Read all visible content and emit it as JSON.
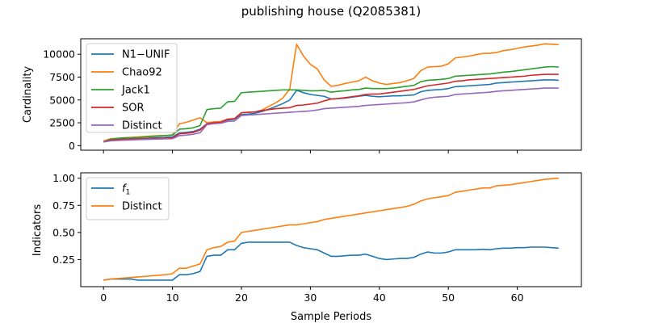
{
  "chart_data": [
    {
      "type": "line",
      "title": "publishing house (Q2085381)",
      "xlabel": "",
      "ylabel": "Cardinality",
      "xlim": [
        -3.3,
        69.3
      ],
      "ylim": [
        -500,
        11700
      ],
      "xticks": [
        0,
        10,
        20,
        30,
        40,
        50,
        60
      ],
      "xtick_labels_shown": false,
      "yticks": [
        0,
        2500,
        5000,
        7500,
        10000
      ],
      "ytick_labels": [
        "0",
        "2500",
        "5000",
        "7500",
        "10000"
      ],
      "legend_position": "upper-left",
      "series": [
        {
          "name": "N1−UNIF",
          "color": "#1f77b4",
          "x": [
            0,
            1,
            2,
            3,
            4,
            5,
            6,
            7,
            8,
            9,
            10,
            11,
            12,
            13,
            14,
            15,
            16,
            17,
            18,
            19,
            20,
            21,
            22,
            23,
            24,
            25,
            26,
            27,
            28,
            29,
            30,
            31,
            32,
            33,
            34,
            35,
            36,
            37,
            38,
            39,
            40,
            41,
            42,
            43,
            44,
            45,
            46,
            47,
            48,
            49,
            50,
            51,
            52,
            53,
            54,
            55,
            56,
            57,
            58,
            59,
            60,
            61,
            62,
            63,
            64,
            65,
            66
          ],
          "values": [
            420,
            600,
            680,
            720,
            760,
            780,
            800,
            840,
            880,
            900,
            950,
            1400,
            1450,
            1550,
            1800,
            2400,
            2500,
            2550,
            2800,
            2900,
            3400,
            3450,
            3550,
            3750,
            4000,
            4300,
            4600,
            5000,
            6050,
            5800,
            5600,
            5500,
            5400,
            5100,
            5150,
            5200,
            5300,
            5400,
            5500,
            5400,
            5350,
            5400,
            5450,
            5450,
            5500,
            5550,
            5900,
            6050,
            6100,
            6150,
            6250,
            6450,
            6500,
            6550,
            6600,
            6650,
            6700,
            6850,
            6900,
            6950,
            7000,
            7050,
            7100,
            7150,
            7200,
            7200,
            7150
          ]
        },
        {
          "name": "Chao92",
          "color": "#ff7f0e",
          "x": [
            0,
            1,
            2,
            3,
            4,
            5,
            6,
            7,
            8,
            9,
            10,
            11,
            12,
            13,
            14,
            15,
            16,
            17,
            18,
            19,
            20,
            21,
            22,
            23,
            24,
            25,
            26,
            27,
            28,
            29,
            30,
            31,
            32,
            33,
            34,
            35,
            36,
            37,
            38,
            39,
            40,
            41,
            42,
            43,
            44,
            45,
            46,
            47,
            48,
            49,
            50,
            51,
            52,
            53,
            54,
            55,
            56,
            57,
            58,
            59,
            60,
            61,
            62,
            63,
            64,
            65,
            66
          ],
          "values": [
            500,
            750,
            800,
            850,
            900,
            950,
            1000,
            1050,
            1100,
            1100,
            1200,
            2400,
            2550,
            2800,
            3050,
            2500,
            2600,
            2650,
            2900,
            2950,
            3600,
            3650,
            3700,
            3900,
            4300,
            4700,
            5200,
            6200,
            11100,
            9800,
            8900,
            8400,
            7200,
            6500,
            6600,
            6800,
            6950,
            7100,
            7500,
            7100,
            6850,
            6700,
            6800,
            6900,
            7100,
            7350,
            8200,
            8600,
            8650,
            8700,
            8950,
            9600,
            9700,
            9800,
            9950,
            10100,
            10100,
            10200,
            10400,
            10500,
            10650,
            10800,
            10900,
            11000,
            11150,
            11100,
            11050
          ]
        },
        {
          "name": "Jack1",
          "color": "#2ca02c",
          "x": [
            0,
            1,
            2,
            3,
            4,
            5,
            6,
            7,
            8,
            9,
            10,
            11,
            12,
            13,
            14,
            15,
            16,
            17,
            18,
            19,
            20,
            21,
            22,
            23,
            24,
            25,
            26,
            27,
            28,
            29,
            30,
            31,
            32,
            33,
            34,
            35,
            36,
            37,
            38,
            39,
            40,
            41,
            42,
            43,
            44,
            45,
            46,
            47,
            48,
            49,
            50,
            51,
            52,
            53,
            54,
            55,
            56,
            57,
            58,
            59,
            60,
            61,
            62,
            63,
            64,
            65,
            66
          ],
          "values": [
            420,
            700,
            800,
            850,
            870,
            900,
            950,
            1000,
            1050,
            1100,
            1150,
            1800,
            1850,
            1950,
            2200,
            3950,
            4050,
            4100,
            4800,
            4850,
            5800,
            5850,
            5900,
            5950,
            6000,
            6050,
            6100,
            6100,
            6100,
            6050,
            6000,
            6000,
            6050,
            5850,
            5950,
            6000,
            6100,
            6150,
            6300,
            6250,
            6250,
            6250,
            6300,
            6400,
            6500,
            6600,
            7000,
            7150,
            7200,
            7250,
            7350,
            7600,
            7650,
            7700,
            7750,
            7800,
            7850,
            7950,
            8050,
            8100,
            8200,
            8300,
            8400,
            8500,
            8600,
            8650,
            8600
          ]
        },
        {
          "name": "SOR",
          "color": "#d62728",
          "x": [
            0,
            1,
            2,
            3,
            4,
            5,
            6,
            7,
            8,
            9,
            10,
            11,
            12,
            13,
            14,
            15,
            16,
            17,
            18,
            19,
            20,
            21,
            22,
            23,
            24,
            25,
            26,
            27,
            28,
            29,
            30,
            31,
            32,
            33,
            34,
            35,
            36,
            37,
            38,
            39,
            40,
            41,
            42,
            43,
            44,
            45,
            46,
            47,
            48,
            49,
            50,
            51,
            52,
            53,
            54,
            55,
            56,
            57,
            58,
            59,
            60,
            61,
            62,
            63,
            64,
            65,
            66
          ],
          "values": [
            420,
            600,
            650,
            700,
            720,
            740,
            760,
            780,
            800,
            820,
            850,
            1300,
            1350,
            1450,
            1700,
            2400,
            2500,
            2550,
            2900,
            2950,
            3600,
            3650,
            3700,
            3850,
            3950,
            4050,
            4100,
            4150,
            4400,
            4450,
            4550,
            4650,
            4900,
            5100,
            5150,
            5250,
            5350,
            5450,
            5600,
            5650,
            5650,
            5750,
            5850,
            5950,
            6050,
            6150,
            6350,
            6550,
            6650,
            6750,
            6850,
            7050,
            7100,
            7200,
            7250,
            7300,
            7350,
            7400,
            7450,
            7500,
            7550,
            7600,
            7700,
            7750,
            7800,
            7800,
            7800
          ]
        },
        {
          "name": "Distinct",
          "color": "#9467bd",
          "x": [
            0,
            1,
            2,
            3,
            4,
            5,
            6,
            7,
            8,
            9,
            10,
            11,
            12,
            13,
            14,
            15,
            16,
            17,
            18,
            19,
            20,
            21,
            22,
            23,
            24,
            25,
            26,
            27,
            28,
            29,
            30,
            31,
            32,
            33,
            34,
            35,
            36,
            37,
            38,
            39,
            40,
            41,
            42,
            43,
            44,
            45,
            46,
            47,
            48,
            49,
            50,
            51,
            52,
            53,
            54,
            55,
            56,
            57,
            58,
            59,
            60,
            61,
            62,
            63,
            64,
            65,
            66
          ],
          "values": [
            400,
            520,
            560,
            600,
            620,
            650,
            680,
            700,
            720,
            740,
            760,
            1100,
            1150,
            1250,
            1400,
            2300,
            2400,
            2450,
            2650,
            2700,
            3300,
            3350,
            3400,
            3450,
            3500,
            3550,
            3600,
            3650,
            3700,
            3750,
            3800,
            3900,
            4050,
            4100,
            4150,
            4200,
            4250,
            4300,
            4400,
            4450,
            4500,
            4550,
            4600,
            4650,
            4700,
            4800,
            5000,
            5200,
            5300,
            5350,
            5400,
            5600,
            5650,
            5700,
            5750,
            5800,
            5850,
            5950,
            6000,
            6050,
            6100,
            6150,
            6200,
            6250,
            6300,
            6300,
            6300
          ]
        }
      ]
    },
    {
      "type": "line",
      "title": "",
      "xlabel": "Sample Periods",
      "ylabel": "Indicators",
      "xlim": [
        -3.3,
        69.3
      ],
      "ylim": [
        0.0,
        1.05
      ],
      "xticks": [
        0,
        10,
        20,
        30,
        40,
        50,
        60
      ],
      "xtick_labels": [
        "0",
        "10",
        "20",
        "30",
        "40",
        "50",
        "60"
      ],
      "yticks": [
        0.25,
        0.5,
        0.75,
        1.0
      ],
      "ytick_labels": [
        "0.25",
        "0.50",
        "0.75",
        "1.00"
      ],
      "legend_position": "upper-left",
      "series": [
        {
          "name": "f",
          "name_subscript": "1",
          "color": "#1f77b4",
          "x": [
            0,
            1,
            2,
            3,
            4,
            5,
            6,
            7,
            8,
            9,
            10,
            11,
            12,
            13,
            14,
            15,
            16,
            17,
            18,
            19,
            20,
            21,
            22,
            23,
            24,
            25,
            26,
            27,
            28,
            29,
            30,
            31,
            32,
            33,
            34,
            35,
            36,
            37,
            38,
            39,
            40,
            41,
            42,
            43,
            44,
            45,
            46,
            47,
            48,
            49,
            50,
            51,
            52,
            53,
            54,
            55,
            56,
            57,
            58,
            59,
            60,
            61,
            62,
            63,
            64,
            65,
            66
          ],
          "values": [
            0.06,
            0.07,
            0.07,
            0.07,
            0.07,
            0.06,
            0.06,
            0.06,
            0.06,
            0.06,
            0.06,
            0.11,
            0.11,
            0.12,
            0.14,
            0.28,
            0.29,
            0.29,
            0.34,
            0.34,
            0.4,
            0.41,
            0.41,
            0.41,
            0.41,
            0.41,
            0.41,
            0.41,
            0.38,
            0.36,
            0.35,
            0.34,
            0.31,
            0.28,
            0.28,
            0.285,
            0.29,
            0.29,
            0.3,
            0.28,
            0.26,
            0.25,
            0.255,
            0.26,
            0.26,
            0.27,
            0.3,
            0.32,
            0.31,
            0.31,
            0.32,
            0.34,
            0.34,
            0.34,
            0.34,
            0.345,
            0.34,
            0.35,
            0.355,
            0.355,
            0.36,
            0.36,
            0.365,
            0.365,
            0.365,
            0.36,
            0.355
          ]
        },
        {
          "name": "Distinct",
          "color": "#ff7f0e",
          "x": [
            0,
            1,
            2,
            3,
            4,
            5,
            6,
            7,
            8,
            9,
            10,
            11,
            12,
            13,
            14,
            15,
            16,
            17,
            18,
            19,
            20,
            21,
            22,
            23,
            24,
            25,
            26,
            27,
            28,
            29,
            30,
            31,
            32,
            33,
            34,
            35,
            36,
            37,
            38,
            39,
            40,
            41,
            42,
            43,
            44,
            45,
            46,
            47,
            48,
            49,
            50,
            51,
            52,
            53,
            54,
            55,
            56,
            57,
            58,
            59,
            60,
            61,
            62,
            63,
            64,
            65,
            66
          ],
          "values": [
            0.06,
            0.07,
            0.075,
            0.08,
            0.085,
            0.09,
            0.095,
            0.1,
            0.105,
            0.11,
            0.12,
            0.17,
            0.17,
            0.19,
            0.21,
            0.34,
            0.36,
            0.37,
            0.41,
            0.42,
            0.5,
            0.51,
            0.52,
            0.53,
            0.54,
            0.55,
            0.56,
            0.57,
            0.57,
            0.58,
            0.59,
            0.6,
            0.62,
            0.63,
            0.64,
            0.65,
            0.66,
            0.67,
            0.68,
            0.69,
            0.7,
            0.71,
            0.72,
            0.73,
            0.74,
            0.76,
            0.79,
            0.81,
            0.82,
            0.83,
            0.84,
            0.87,
            0.88,
            0.89,
            0.9,
            0.91,
            0.91,
            0.93,
            0.935,
            0.94,
            0.95,
            0.96,
            0.97,
            0.98,
            0.99,
            0.995,
            1.0
          ]
        }
      ]
    }
  ]
}
